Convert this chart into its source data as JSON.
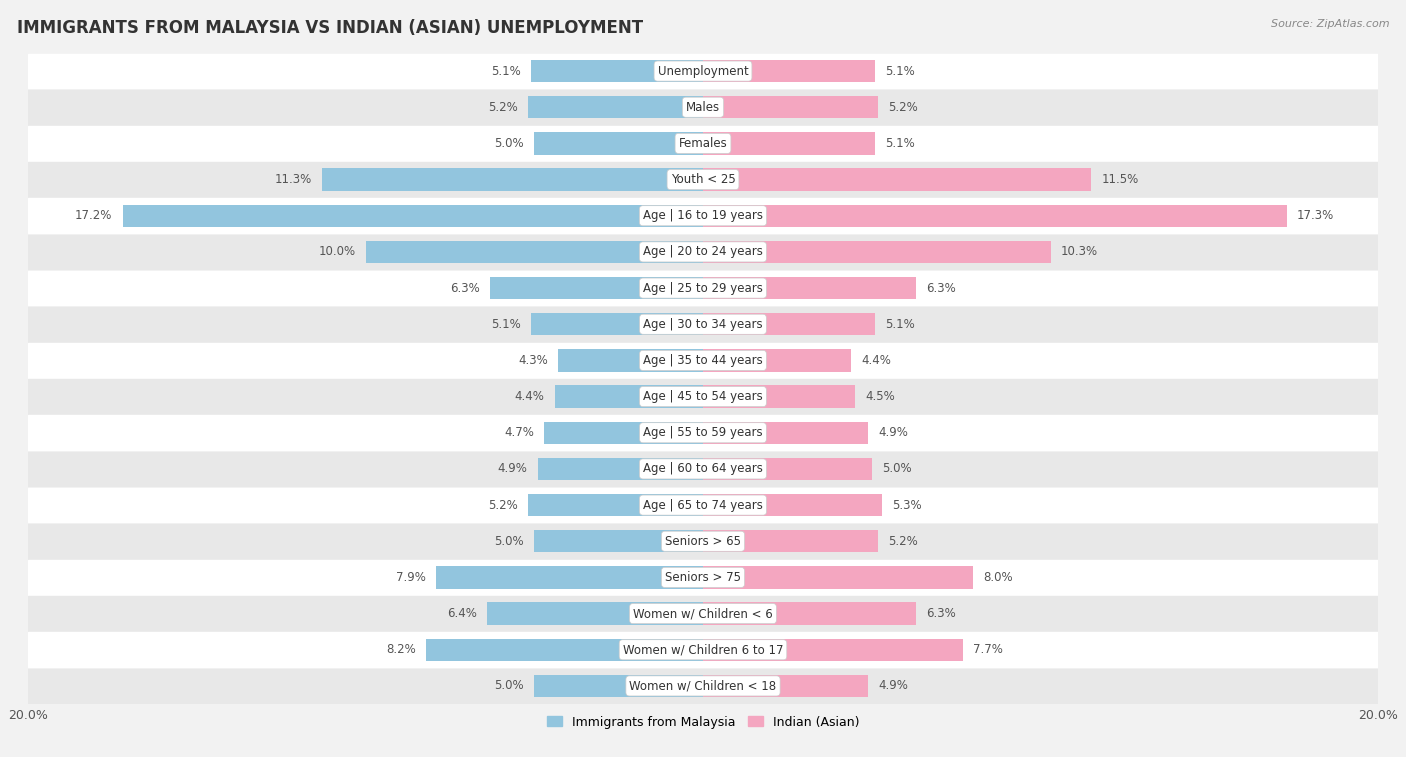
{
  "title": "IMMIGRANTS FROM MALAYSIA VS INDIAN (ASIAN) UNEMPLOYMENT",
  "source": "Source: ZipAtlas.com",
  "categories": [
    "Unemployment",
    "Males",
    "Females",
    "Youth < 25",
    "Age | 16 to 19 years",
    "Age | 20 to 24 years",
    "Age | 25 to 29 years",
    "Age | 30 to 34 years",
    "Age | 35 to 44 years",
    "Age | 45 to 54 years",
    "Age | 55 to 59 years",
    "Age | 60 to 64 years",
    "Age | 65 to 74 years",
    "Seniors > 65",
    "Seniors > 75",
    "Women w/ Children < 6",
    "Women w/ Children 6 to 17",
    "Women w/ Children < 18"
  ],
  "left_values": [
    5.1,
    5.2,
    5.0,
    11.3,
    17.2,
    10.0,
    6.3,
    5.1,
    4.3,
    4.4,
    4.7,
    4.9,
    5.2,
    5.0,
    7.9,
    6.4,
    8.2,
    5.0
  ],
  "right_values": [
    5.1,
    5.2,
    5.1,
    11.5,
    17.3,
    10.3,
    6.3,
    5.1,
    4.4,
    4.5,
    4.9,
    5.0,
    5.3,
    5.2,
    8.0,
    6.3,
    7.7,
    4.9
  ],
  "left_color": "#92c5de",
  "right_color": "#f4a6c0",
  "background_color": "#f2f2f2",
  "row_color_even": "#ffffff",
  "row_color_odd": "#e8e8e8",
  "max_val": 20.0,
  "legend_left": "Immigrants from Malaysia",
  "legend_right": "Indian (Asian)",
  "title_fontsize": 12,
  "label_fontsize": 8.5,
  "value_fontsize": 8.5,
  "figsize": [
    14.06,
    7.57
  ]
}
